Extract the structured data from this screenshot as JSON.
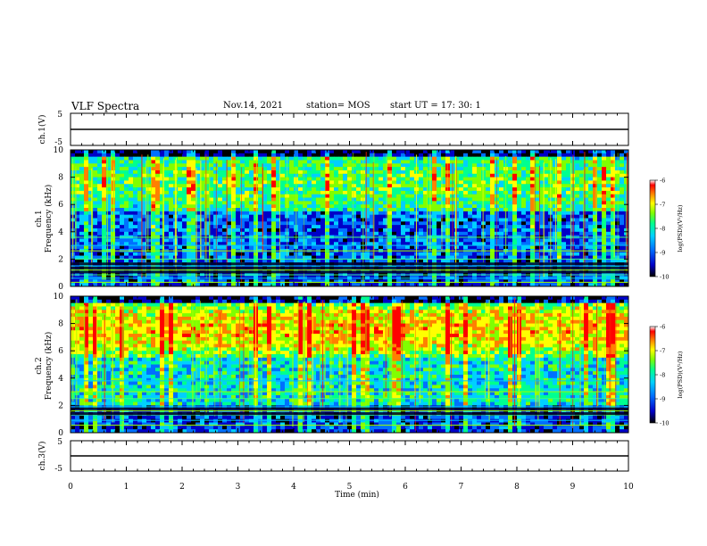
{
  "header": {
    "title": "VLF Spectra",
    "date": "Nov.14, 2021",
    "station": "station= MOS",
    "start_ut": "start  UT =   17: 30: 1"
  },
  "colors": {
    "spectrogram_scale": [
      "#000000",
      "#0000c8",
      "#0070ff",
      "#00d0ff",
      "#00ff90",
      "#80ff00",
      "#ffff00",
      "#ff8000",
      "#ff0000",
      "#ffffff"
    ]
  },
  "chart_data": [
    {
      "type": "line",
      "ylabel": "ch.1(V)",
      "ylim": [
        -5,
        5
      ],
      "yticks": [
        "5",
        "-5"
      ],
      "series_level": 0
    },
    {
      "type": "heatmap",
      "ylabel_line1": "ch.1",
      "ylabel_line2": "Frequency (kHz)",
      "ylim": [
        0,
        10
      ],
      "yticks": [
        "0",
        "2",
        "4",
        "6",
        "8",
        "10"
      ],
      "colorbar": {
        "label": "log(PSD)(V²/Hz)",
        "range": [
          -10,
          -6
        ],
        "ticks": [
          "-6",
          "-7",
          "-8",
          "-9",
          "-10"
        ]
      }
    },
    {
      "type": "heatmap",
      "ylabel_line1": "ch.2",
      "ylabel_line2": "Frequency (kHz)",
      "ylim": [
        0,
        10
      ],
      "yticks": [
        "0",
        "2",
        "4",
        "6",
        "8",
        "10"
      ],
      "colorbar": {
        "label": "log(PSD)(V²/Hz)",
        "range": [
          -10,
          -6
        ],
        "ticks": [
          "-6",
          "-7",
          "-8",
          "-9",
          "-10"
        ]
      }
    },
    {
      "type": "line",
      "ylabel": "ch.3(V)",
      "ylim": [
        -5,
        5
      ],
      "yticks": [
        "5",
        "-5"
      ],
      "series_level": 0
    }
  ],
  "xaxis": {
    "label": "Time  (min)",
    "xlim": [
      0,
      10
    ],
    "ticks": [
      "0",
      "1",
      "2",
      "3",
      "4",
      "5",
      "6",
      "7",
      "8",
      "9",
      "10"
    ]
  }
}
